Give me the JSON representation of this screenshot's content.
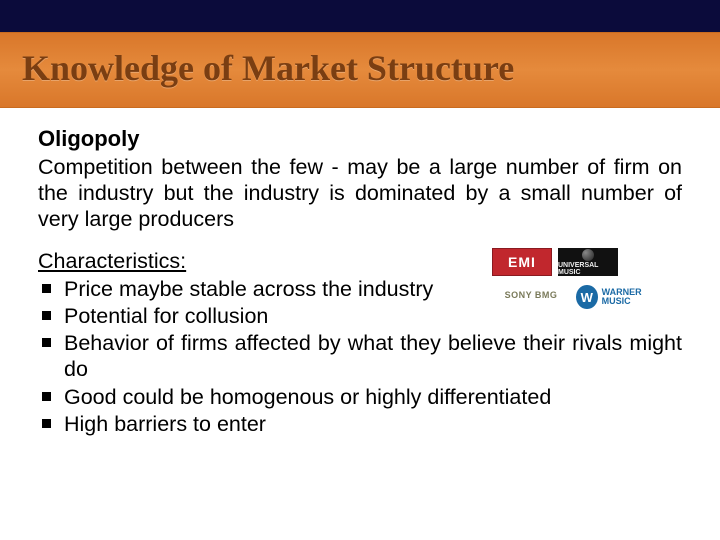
{
  "title": "Knowledge of Market Structure",
  "heading": "Oligopoly",
  "paragraph": "Competition between the few - may be a large number of firm on the industry but the industry is dominated by a small number of very large producers",
  "characteristics_label": "Characteristics:",
  "bullets": [
    "Price maybe stable across the industry",
    "Potential for collusion",
    "Behavior of firms affected by what they believe their rivals might do",
    "Good could be homogenous or highly differentiated",
    "High barriers to enter"
  ],
  "logos": {
    "emi": "EMI",
    "universal": "UNIVERSAL MUSIC",
    "sony": "SONY BMG",
    "warner_w": "W",
    "warner_text": "WARNER MUSIC"
  },
  "colors": {
    "top_strip": "#0b0b3b",
    "title_band": "#e07f33",
    "title_text": "#7a3e12",
    "body_text": "#000000",
    "emi_bg": "#c1272d",
    "warner_blue": "#1b6aa5"
  }
}
